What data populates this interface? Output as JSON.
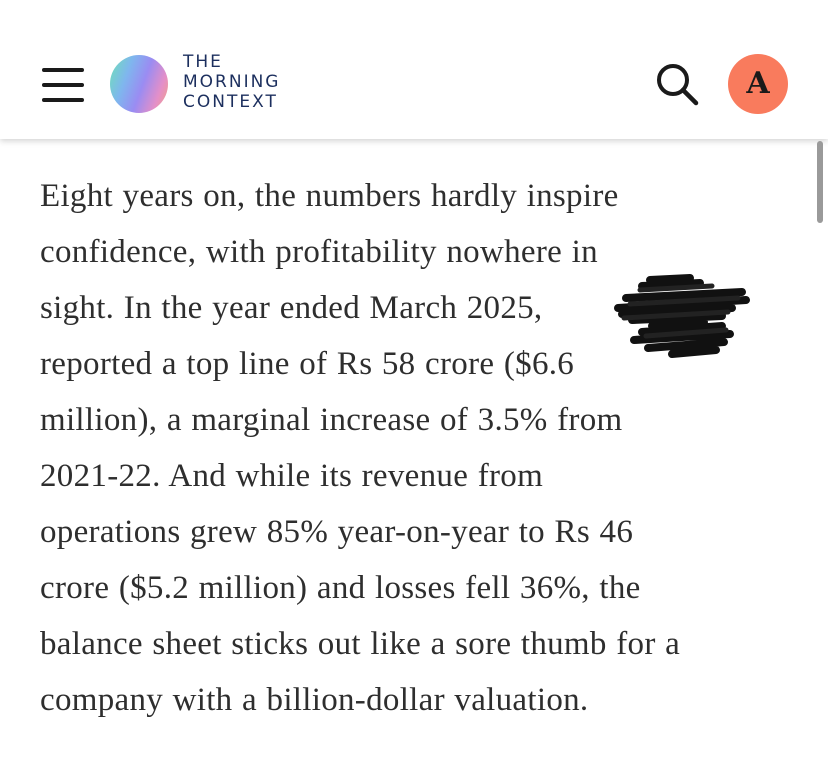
{
  "header": {
    "logo_lines": [
      "THE",
      "MORNING",
      "CONTEXT"
    ],
    "avatar_letter": "A",
    "icons": {
      "menu": "hamburger-menu-icon",
      "search": "search-icon"
    },
    "colors": {
      "avatar_bg": "#f97b5d",
      "logo_text": "#1c2f5e"
    }
  },
  "article": {
    "lines": [
      "Eight years on, the numbers hardly inspire",
      "confidence, with profitability nowhere in",
      "sight. In the year ended March 2025,",
      "reported a top line of Rs 58 crore ($6.6",
      "million), a marginal increase of 3.5% from",
      "2021-22. And while its revenue from",
      "operations grew 85% year-on-year to Rs 46",
      "crore ($5.2 million) and losses fell 36%, the",
      "balance sheet sticks out like a sore thumb for a",
      "company with a billion-dollar valuation."
    ]
  }
}
